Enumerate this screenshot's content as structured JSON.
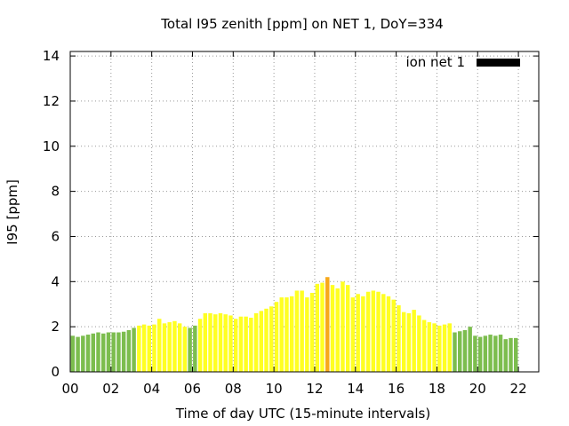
{
  "chart_data": {
    "type": "bar",
    "title": "Total I95 zenith [ppm] on NET 1, DoY=334",
    "xlabel": "Time of day UTC (15-minute intervals)",
    "ylabel": "I95 [ppm]",
    "xlim": [
      0,
      23
    ],
    "ylim": [
      0,
      14.2
    ],
    "x_ticks": [
      "00",
      "02",
      "04",
      "06",
      "08",
      "10",
      "12",
      "14",
      "16",
      "18",
      "20",
      "22"
    ],
    "y_ticks": [
      "0",
      "2",
      "4",
      "6",
      "8",
      "10",
      "12",
      "14"
    ],
    "grid": true,
    "legend": {
      "label": "ion net 1",
      "color": "#000000",
      "placement": "top-right"
    },
    "bar_interval_hours": 0.25,
    "colors": {
      "green": "#7cbd4e",
      "yellow": "#ffff22",
      "orange": "#f7a81b"
    },
    "values": [
      1.6,
      1.55,
      1.6,
      1.65,
      1.7,
      1.75,
      1.7,
      1.75,
      1.75,
      1.75,
      1.78,
      1.85,
      1.95,
      2.05,
      2.1,
      2.05,
      2.1,
      2.35,
      2.15,
      2.2,
      2.25,
      2.15,
      2.0,
      1.95,
      2.05,
      2.35,
      2.6,
      2.6,
      2.55,
      2.6,
      2.55,
      2.5,
      2.35,
      2.45,
      2.45,
      2.4,
      2.6,
      2.7,
      2.8,
      2.9,
      3.1,
      3.3,
      3.3,
      3.35,
      3.6,
      3.6,
      3.3,
      3.5,
      3.9,
      3.95,
      4.2,
      3.85,
      3.7,
      4.0,
      3.85,
      3.3,
      3.45,
      3.35,
      3.55,
      3.6,
      3.55,
      3.45,
      3.35,
      3.2,
      2.95,
      2.65,
      2.6,
      2.75,
      2.5,
      2.3,
      2.2,
      2.15,
      2.05,
      2.1,
      2.15,
      1.75,
      1.8,
      1.85,
      2.0,
      1.6,
      1.55,
      1.6,
      1.65,
      1.6,
      1.65,
      1.45,
      1.5,
      1.5
    ],
    "bar_colors": [
      "green",
      "green",
      "green",
      "green",
      "green",
      "green",
      "green",
      "green",
      "green",
      "green",
      "green",
      "green",
      "green",
      "yellow",
      "yellow",
      "yellow",
      "yellow",
      "yellow",
      "yellow",
      "yellow",
      "yellow",
      "yellow",
      "yellow",
      "green",
      "green",
      "yellow",
      "yellow",
      "yellow",
      "yellow",
      "yellow",
      "yellow",
      "yellow",
      "yellow",
      "yellow",
      "yellow",
      "yellow",
      "yellow",
      "yellow",
      "yellow",
      "yellow",
      "yellow",
      "yellow",
      "yellow",
      "yellow",
      "yellow",
      "yellow",
      "yellow",
      "yellow",
      "yellow",
      "yellow",
      "orange",
      "yellow",
      "yellow",
      "yellow",
      "yellow",
      "yellow",
      "yellow",
      "yellow",
      "yellow",
      "yellow",
      "yellow",
      "yellow",
      "yellow",
      "yellow",
      "yellow",
      "yellow",
      "yellow",
      "yellow",
      "yellow",
      "yellow",
      "yellow",
      "yellow",
      "yellow",
      "yellow",
      "yellow",
      "green",
      "green",
      "green",
      "green",
      "green",
      "green",
      "green",
      "green",
      "green",
      "green",
      "green",
      "green",
      "green"
    ]
  }
}
